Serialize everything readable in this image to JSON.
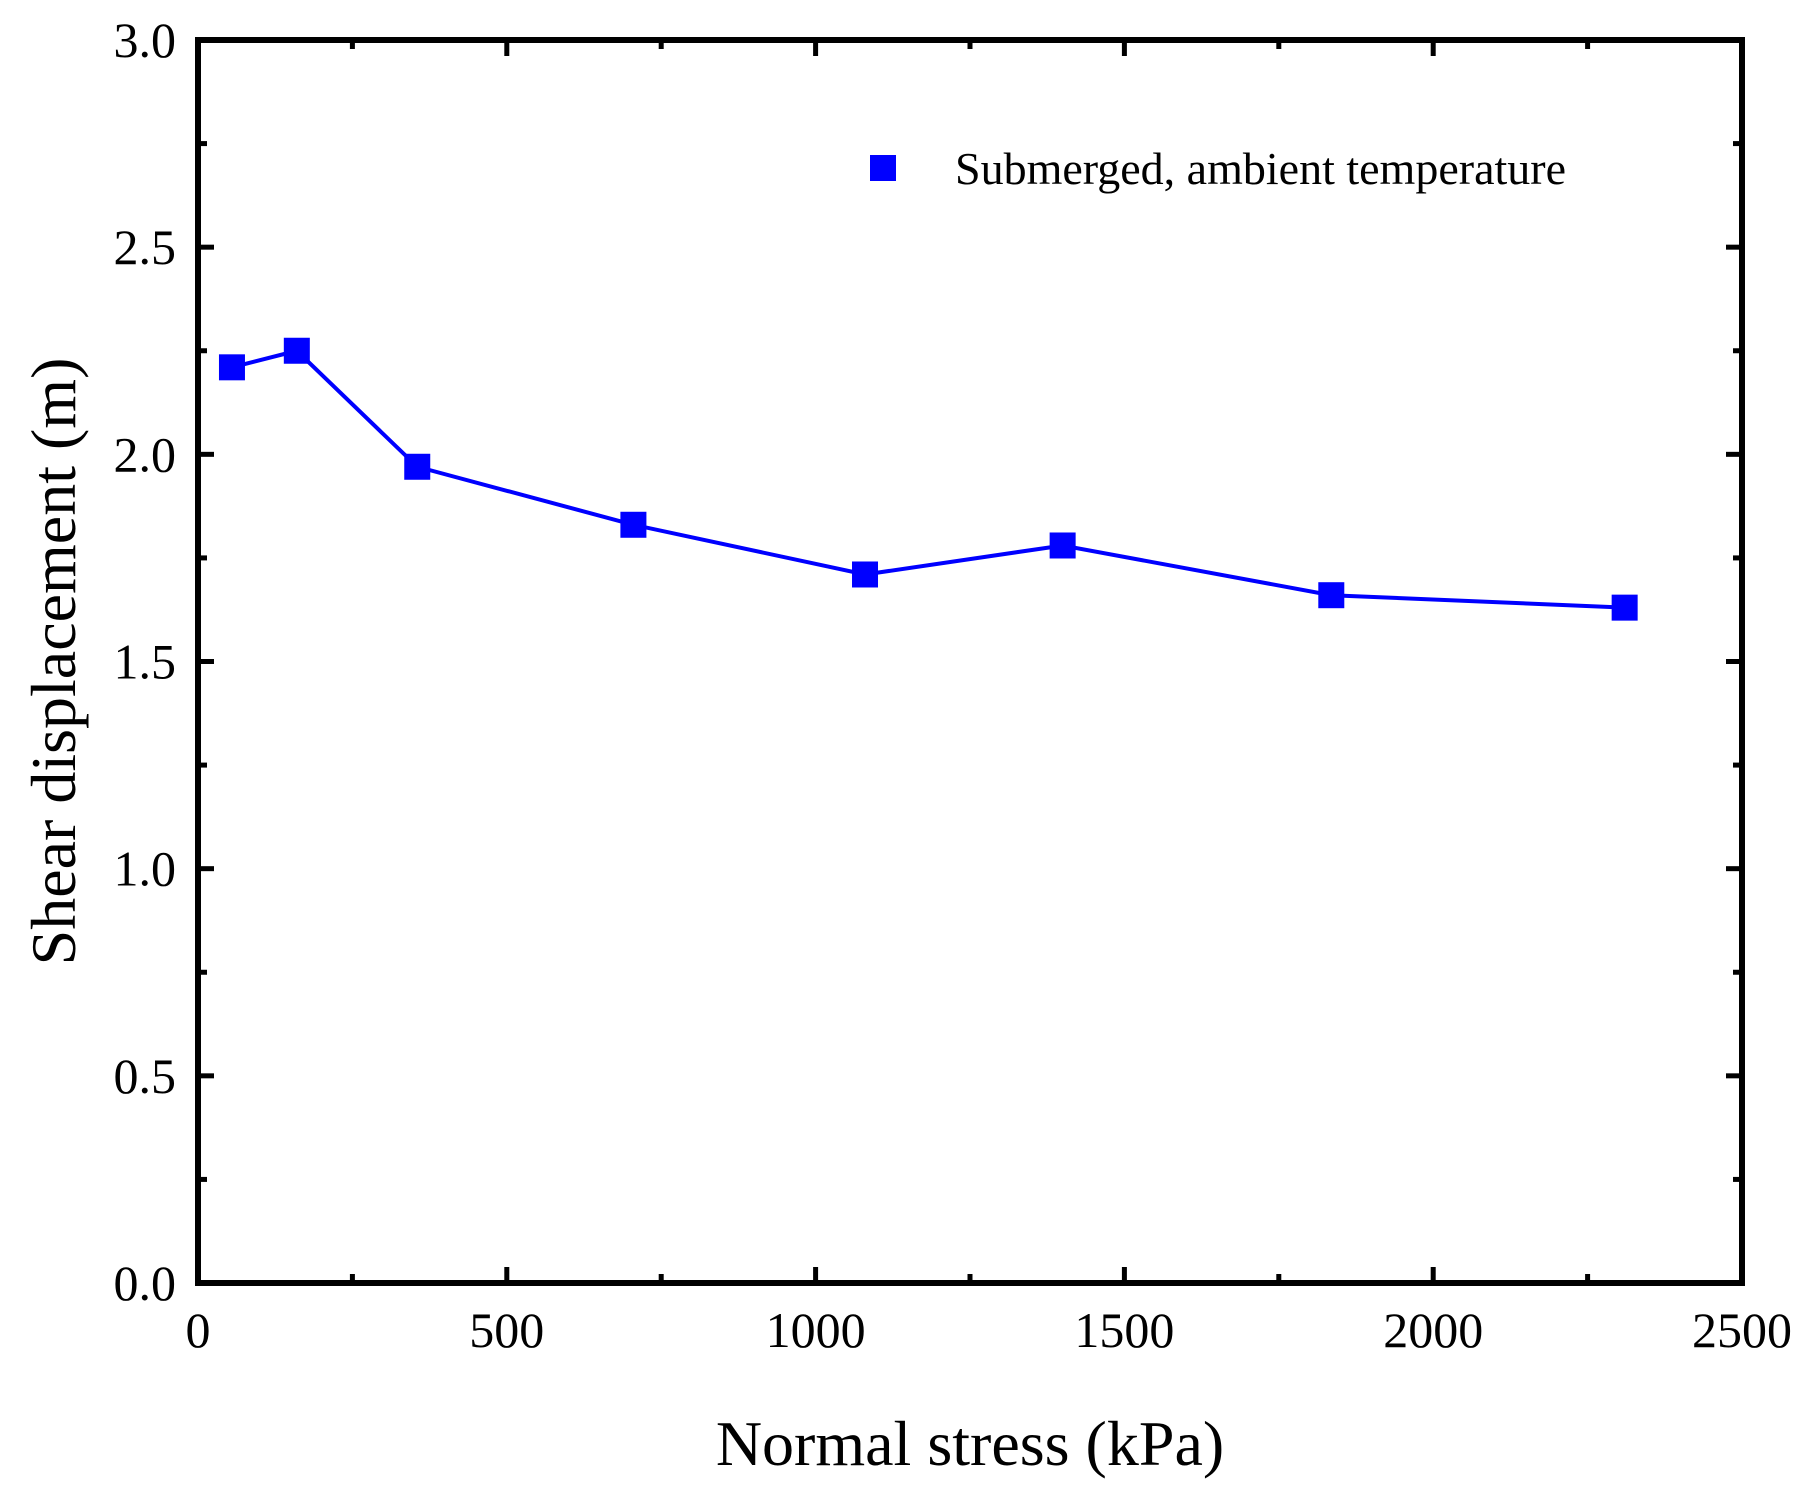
{
  "chart_data": {
    "type": "line",
    "title": "",
    "xlabel": "Normal stress (kPa)",
    "ylabel": "Shear displacement (m)",
    "xlim": [
      0,
      2500
    ],
    "ylim": [
      0.0,
      3.0
    ],
    "x_ticks": [
      0,
      500,
      1000,
      1500,
      2000,
      2500
    ],
    "x_tick_labels": [
      "0",
      "500",
      "1000",
      "1500",
      "2000",
      "2500"
    ],
    "y_ticks": [
      0.0,
      0.5,
      1.0,
      1.5,
      2.0,
      2.5,
      3.0
    ],
    "y_tick_labels": [
      "0.0",
      "0.5",
      "1.0",
      "1.5",
      "2.0",
      "2.5",
      "3.0"
    ],
    "grid": false,
    "legend_position": "top-right",
    "series": [
      {
        "name": "Submerged, ambient temperature",
        "color": "#0000ff",
        "marker": "square",
        "x": [
          55,
          160,
          355,
          705,
          1080,
          1400,
          1835,
          2310
        ],
        "y": [
          2.21,
          2.25,
          1.97,
          1.83,
          1.71,
          1.78,
          1.66,
          1.63
        ]
      }
    ]
  }
}
